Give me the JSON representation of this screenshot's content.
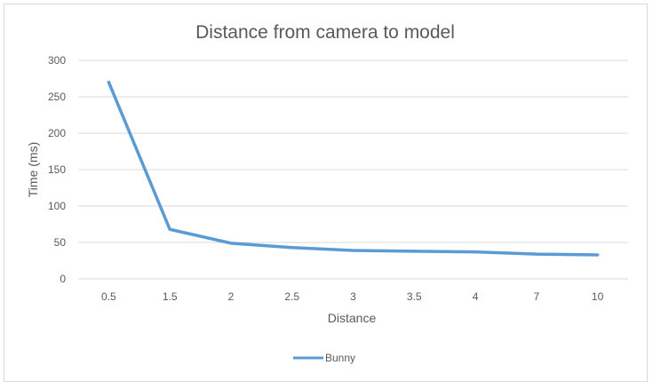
{
  "chart_data": {
    "type": "line",
    "title": "Distance from camera to model",
    "xlabel": "Distance",
    "ylabel": "Time (ms)",
    "categories": [
      "0.5",
      "1.5",
      "2",
      "2.5",
      "3",
      "3.5",
      "4",
      "7",
      "10"
    ],
    "yticks": [
      "0",
      "50",
      "100",
      "150",
      "200",
      "250",
      "300"
    ],
    "ylim": [
      0,
      300
    ],
    "grid": true,
    "legend_position": "bottom",
    "series": [
      {
        "name": "Bunny",
        "values": [
          270,
          68,
          49,
          43,
          39,
          38,
          37,
          34,
          33
        ],
        "color": "#5b9bd5"
      }
    ]
  }
}
